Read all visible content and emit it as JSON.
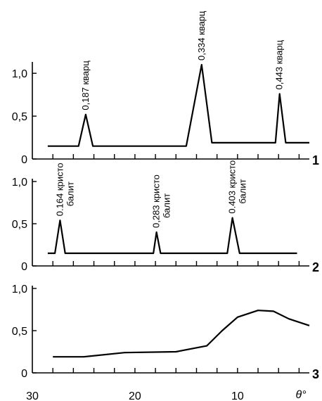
{
  "chart_data": [
    {
      "type": "line",
      "panel_label": "1",
      "ylim": [
        0,
        1.1
      ],
      "yticks": [
        "0",
        "0,5",
        "1,0"
      ],
      "series": [
        {
          "points": [
            [
              28.5,
              0.15
            ],
            [
              25.5,
              0.15
            ],
            [
              24.8,
              0.52
            ],
            [
              24.1,
              0.15
            ],
            [
              15.0,
              0.15
            ],
            [
              13.5,
              1.1
            ],
            [
              12.5,
              0.19
            ],
            [
              6.3,
              0.19
            ],
            [
              5.9,
              0.76
            ],
            [
              5.3,
              0.19
            ],
            [
              3.0,
              0.19
            ]
          ]
        }
      ],
      "annotations": [
        {
          "text": "0,187 кварц",
          "x": 24.8,
          "y": 0.52
        },
        {
          "text": "0,334 кварц",
          "x": 13.5,
          "y": 1.1
        },
        {
          "text": "0,443 кварц",
          "x": 5.9,
          "y": 0.76
        }
      ]
    },
    {
      "type": "line",
      "panel_label": "2",
      "ylim": [
        0,
        1.0
      ],
      "yticks": [
        "0",
        "0,5",
        "1,0"
      ],
      "series": [
        {
          "points": [
            [
              28.5,
              0.15
            ],
            [
              27.8,
              0.15
            ],
            [
              27.3,
              0.54
            ],
            [
              26.8,
              0.15
            ],
            [
              18.2,
              0.15
            ],
            [
              17.9,
              0.4
            ],
            [
              17.5,
              0.15
            ],
            [
              11.0,
              0.15
            ],
            [
              10.5,
              0.57
            ],
            [
              9.8,
              0.15
            ],
            [
              4.2,
              0.15
            ]
          ]
        }
      ],
      "annotations": [
        {
          "text": "0.164 кристо",
          "text2": "балит",
          "x": 27.3,
          "y": 0.54
        },
        {
          "text": "0,283 кристо",
          "text2": "балит",
          "x": 17.9,
          "y": 0.4
        },
        {
          "text": "0.403 кристо",
          "text2": "балит",
          "x": 10.5,
          "y": 0.57
        }
      ]
    },
    {
      "type": "line",
      "panel_label": "3",
      "ylim": [
        0,
        1.0
      ],
      "yticks": [
        "0",
        "0,5",
        "1,0"
      ],
      "xlabel": "θ°",
      "xticks": [
        "30",
        "20",
        "10"
      ],
      "xlim": [
        30,
        3
      ],
      "series": [
        {
          "points": [
            [
              28.0,
              0.19
            ],
            [
              25.0,
              0.19
            ],
            [
              21.0,
              0.24
            ],
            [
              16.0,
              0.25
            ],
            [
              13.0,
              0.32
            ],
            [
              11.5,
              0.5
            ],
            [
              10.0,
              0.66
            ],
            [
              8.0,
              0.74
            ],
            [
              6.5,
              0.73
            ],
            [
              5.0,
              0.64
            ],
            [
              3.0,
              0.56
            ]
          ]
        }
      ]
    }
  ]
}
